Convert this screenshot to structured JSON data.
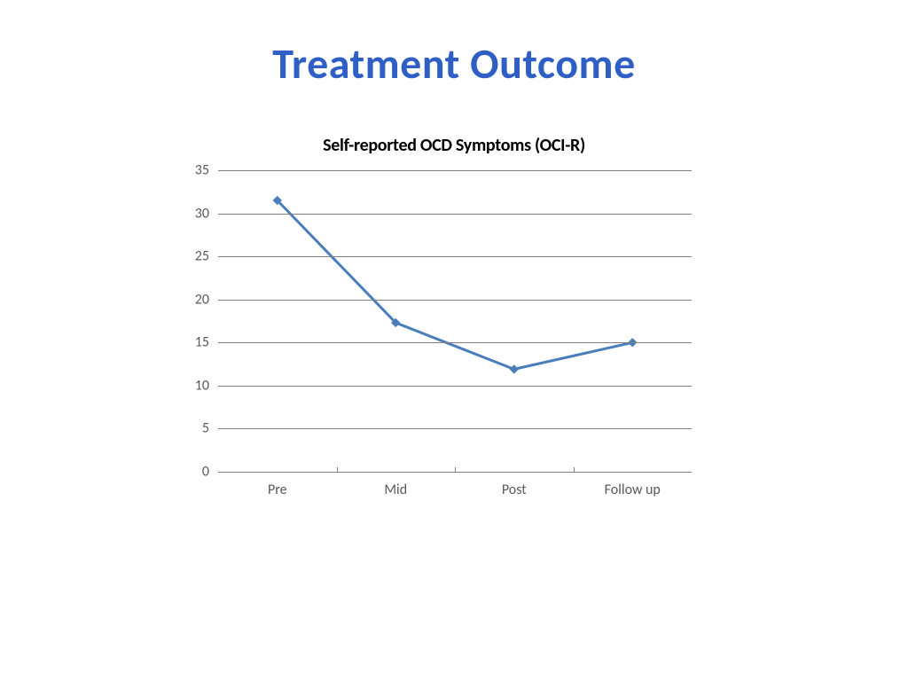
{
  "title": {
    "text": "Treatment Outcome",
    "color": "#2f5fc4",
    "fontsize": 48,
    "font_weight": 700
  },
  "chart": {
    "type": "line",
    "subtitle": "Self-reported OCD Symptoms (OCI-R)",
    "subtitle_fontsize": 20,
    "subtitle_color": "#000000",
    "background_color": "#ffffff",
    "plot_background": "#ffffff",
    "grid_color": "#808080",
    "axis_color": "#808080",
    "tick_label_color": "#595959",
    "tick_label_fontsize": 16,
    "line_color": "#4a7ebb",
    "line_width": 3,
    "marker": {
      "shape": "diamond",
      "size": 9,
      "fill": "#4a7ebb",
      "border": "#4a7ebb"
    },
    "categories": [
      "Pre",
      "Mid",
      "Post",
      "Follow up"
    ],
    "values": [
      31.5,
      17.3,
      11.9,
      15.0
    ],
    "ylim": [
      0,
      35
    ],
    "ytick_step": 5,
    "y_ticks": [
      0,
      5,
      10,
      15,
      20,
      25,
      30,
      35
    ]
  }
}
